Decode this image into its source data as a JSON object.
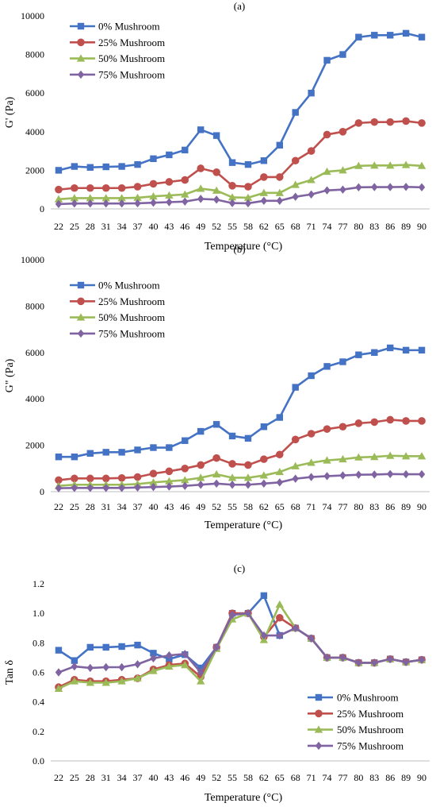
{
  "chart_data": [
    {
      "type": "line",
      "panel": "(a)",
      "xlabel": "Temperature (°C)",
      "ylabel": "G' (Pa)",
      "ylim": [
        0,
        10000
      ],
      "yticks": [
        0,
        2000,
        4000,
        6000,
        8000,
        10000
      ],
      "legend": "top-left",
      "categories": [
        "22",
        "25",
        "28",
        "31",
        "34",
        "37",
        "40",
        "43",
        "46",
        "49",
        "52",
        "55",
        "58",
        "62",
        "65",
        "68",
        "71",
        "74",
        "77",
        "80",
        "83",
        "86",
        "89",
        "90"
      ],
      "series": [
        {
          "name": "0% Mushroom",
          "color": "#4472C4",
          "marker": "square",
          "values": [
            2000,
            2200,
            2150,
            2180,
            2200,
            2300,
            2600,
            2800,
            3050,
            4100,
            3800,
            2400,
            2300,
            2500,
            3300,
            5000,
            6000,
            7700,
            8000,
            8900,
            9000,
            9000,
            9100,
            8900
          ]
        },
        {
          "name": "25% Mushroom",
          "color": "#C0504D",
          "marker": "circle",
          "values": [
            1000,
            1080,
            1080,
            1080,
            1080,
            1150,
            1300,
            1400,
            1500,
            2100,
            1900,
            1200,
            1150,
            1650,
            1650,
            2500,
            3000,
            3850,
            4000,
            4450,
            4500,
            4500,
            4550,
            4450
          ]
        },
        {
          "name": "50% Mushroom",
          "color": "#9BBB59",
          "marker": "triangle",
          "values": [
            500,
            560,
            560,
            560,
            560,
            580,
            650,
            700,
            750,
            1050,
            950,
            600,
            580,
            830,
            830,
            1250,
            1500,
            1930,
            2000,
            2230,
            2250,
            2250,
            2280,
            2230
          ]
        },
        {
          "name": "75% Mushroom",
          "color": "#8064A2",
          "marker": "diamond",
          "values": [
            250,
            280,
            280,
            280,
            280,
            290,
            320,
            350,
            380,
            520,
            480,
            300,
            290,
            420,
            420,
            630,
            750,
            960,
            1000,
            1120,
            1130,
            1130,
            1140,
            1120
          ]
        }
      ]
    },
    {
      "type": "line",
      "panel": "(b)",
      "xlabel": "Temperature (°C)",
      "ylabel": "G\" (Pa)",
      "ylim": [
        0,
        10000
      ],
      "yticks": [
        0,
        2000,
        4000,
        6000,
        8000,
        10000
      ],
      "legend": "top-left",
      "categories": [
        "22",
        "25",
        "28",
        "31",
        "34",
        "37",
        "40",
        "43",
        "46",
        "49",
        "52",
        "55",
        "58",
        "62",
        "65",
        "68",
        "71",
        "74",
        "77",
        "80",
        "83",
        "86",
        "89",
        "90"
      ],
      "series": [
        {
          "name": "0% Mushroom",
          "color": "#4472C4",
          "marker": "square",
          "values": [
            1500,
            1500,
            1650,
            1700,
            1700,
            1800,
            1900,
            1900,
            2200,
            2600,
            2900,
            2400,
            2300,
            2800,
            3200,
            4500,
            5000,
            5400,
            5600,
            5900,
            6000,
            6200,
            6100,
            6100
          ]
        },
        {
          "name": "25% Mushroom",
          "color": "#C0504D",
          "marker": "circle",
          "values": [
            500,
            570,
            570,
            570,
            590,
            630,
            780,
            880,
            1000,
            1150,
            1450,
            1200,
            1150,
            1400,
            1600,
            2250,
            2500,
            2700,
            2800,
            2950,
            3000,
            3100,
            3050,
            3050
          ]
        },
        {
          "name": "50% Mushroom",
          "color": "#9BBB59",
          "marker": "triangle",
          "values": [
            250,
            300,
            300,
            300,
            300,
            330,
            400,
            450,
            500,
            600,
            750,
            600,
            600,
            700,
            850,
            1100,
            1250,
            1350,
            1400,
            1480,
            1500,
            1550,
            1530,
            1530
          ]
        },
        {
          "name": "75% Mushroom",
          "color": "#8064A2",
          "marker": "diamond",
          "values": [
            150,
            160,
            160,
            160,
            160,
            180,
            200,
            220,
            250,
            300,
            350,
            300,
            300,
            350,
            400,
            560,
            630,
            670,
            700,
            730,
            740,
            760,
            750,
            750
          ]
        }
      ]
    },
    {
      "type": "line",
      "panel": "(c)",
      "xlabel": "Temperature (°C)",
      "ylabel": "Tan δ",
      "ylim": [
        0,
        1.2
      ],
      "yticks": [
        "0.0",
        "0.2",
        "0.4",
        "0.6",
        "0.8",
        "1.0",
        "1.2"
      ],
      "legend": "bottom-right",
      "categories": [
        "22",
        "25",
        "28",
        "31",
        "34",
        "37",
        "40",
        "43",
        "46",
        "49",
        "52",
        "55",
        "58",
        "62",
        "65",
        "68",
        "71",
        "74",
        "77",
        "80",
        "83",
        "86",
        "89",
        "90"
      ],
      "series": [
        {
          "name": "0% Mushroom",
          "color": "#4472C4",
          "marker": "square",
          "values": [
            0.75,
            0.68,
            0.77,
            0.77,
            0.775,
            0.785,
            0.73,
            0.69,
            0.72,
            0.63,
            0.77,
            1.0,
            1.0,
            1.12,
            0.85,
            0.9,
            0.83,
            0.7,
            0.7,
            0.665,
            0.665,
            0.69,
            0.67,
            0.685
          ]
        },
        {
          "name": "25% Mushroom",
          "color": "#C0504D",
          "marker": "circle",
          "values": [
            0.5,
            0.55,
            0.54,
            0.54,
            0.55,
            0.56,
            0.62,
            0.65,
            0.66,
            0.57,
            0.77,
            1.0,
            1.0,
            0.84,
            0.97,
            0.9,
            0.83,
            0.7,
            0.7,
            0.665,
            0.665,
            0.69,
            0.67,
            0.685
          ]
        },
        {
          "name": "50% Mushroom",
          "color": "#9BBB59",
          "marker": "triangle",
          "values": [
            0.49,
            0.54,
            0.53,
            0.53,
            0.54,
            0.56,
            0.61,
            0.64,
            0.65,
            0.54,
            0.76,
            0.96,
            1.0,
            0.82,
            1.06,
            0.9,
            0.83,
            0.7,
            0.7,
            0.665,
            0.665,
            0.69,
            0.67,
            0.685
          ]
        },
        {
          "name": "75% Mushroom",
          "color": "#8064A2",
          "marker": "diamond",
          "values": [
            0.6,
            0.64,
            0.63,
            0.635,
            0.635,
            0.655,
            0.695,
            0.715,
            0.725,
            0.6,
            0.77,
            0.99,
            1.0,
            0.85,
            0.85,
            0.9,
            0.83,
            0.7,
            0.7,
            0.665,
            0.665,
            0.69,
            0.67,
            0.685
          ]
        }
      ]
    }
  ]
}
